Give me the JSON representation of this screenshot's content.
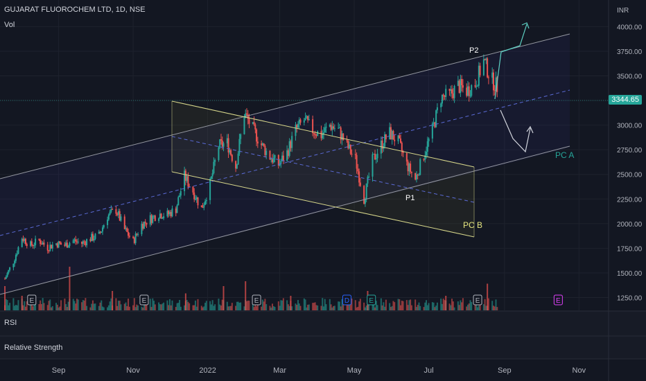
{
  "header": {
    "title": "GUJARAT FLUOROCHEM LTD, 1D, NSE",
    "indicator": "Vol"
  },
  "currency": "INR",
  "last_price": "3344.65",
  "panels": {
    "rsi": "RSI",
    "relative_strength": "Relative Strength"
  },
  "colors": {
    "up": "#26a69a",
    "down": "#ef5350",
    "bg": "#131722",
    "grid": "#1e222d",
    "text": "#b2b5be",
    "channel_a": "#9598a1",
    "channel_b": "#d9d98c"
  },
  "annotations": {
    "p1": "P1",
    "p2": "P2",
    "pc_a": "PC A",
    "pc_b": "PC B"
  },
  "event_markers": [
    {
      "label": "E",
      "x": "2021-08-10",
      "color": "#b2b5be"
    },
    {
      "label": "E",
      "x": "2021-11-10",
      "color": "#b2b5be"
    },
    {
      "label": "E",
      "x": "2022-02-10",
      "color": "#b2b5be"
    },
    {
      "label": "D",
      "x": "2022-04-25",
      "color": "#2962ff"
    },
    {
      "label": "E",
      "x": "2022-05-15",
      "color": "#26a69a"
    },
    {
      "label": "E",
      "x": "2022-08-10",
      "color": "#b2b5be"
    },
    {
      "label": "E",
      "x": "2022-10-15",
      "color": "#e040fb"
    }
  ],
  "chart_data": {
    "type": "candlestick",
    "title": "GUJARAT FLUOROCHEM LTD, 1D, NSE",
    "x_ticks": [
      {
        "label": "Sep",
        "x": "2021-09-01"
      },
      {
        "label": "Nov",
        "x": "2021-11-01"
      },
      {
        "label": "2022",
        "x": "2022-01-01"
      },
      {
        "label": "Mar",
        "x": "2022-03-01"
      },
      {
        "label": "May",
        "x": "2022-05-01"
      },
      {
        "label": "Jul",
        "x": "2022-07-01"
      },
      {
        "label": "Sep",
        "x": "2022-09-01"
      },
      {
        "label": "Nov",
        "x": "2022-11-01"
      }
    ],
    "y_ticks": [
      "1250.00",
      "1500.00",
      "1750.00",
      "2000.00",
      "2250.00",
      "2500.00",
      "2750.00",
      "3000.00",
      "3250.00",
      "3500.00",
      "3750.00",
      "4000.00"
    ],
    "ylim": [
      1120,
      4270
    ],
    "xlim": [
      "2021-07-15",
      "2022-11-15"
    ],
    "series": [
      {
        "points": [
          {
            "x": "2021-07-19",
            "close": 1440
          },
          {
            "x": "2021-07-26",
            "close": 1620
          },
          {
            "x": "2021-08-02",
            "close": 1860
          },
          {
            "x": "2021-08-09",
            "close": 1780
          },
          {
            "x": "2021-08-16",
            "close": 1830
          },
          {
            "x": "2021-08-23",
            "close": 1760
          },
          {
            "x": "2021-08-30",
            "close": 1800
          },
          {
            "x": "2021-09-06",
            "close": 1780
          },
          {
            "x": "2021-09-13",
            "close": 1830
          },
          {
            "x": "2021-09-20",
            "close": 1800
          },
          {
            "x": "2021-09-27",
            "close": 1850
          },
          {
            "x": "2021-10-04",
            "close": 1880
          },
          {
            "x": "2021-10-11",
            "close": 2080
          },
          {
            "x": "2021-10-18",
            "close": 2140
          },
          {
            "x": "2021-10-25",
            "close": 1940
          },
          {
            "x": "2021-11-01",
            "close": 1820
          },
          {
            "x": "2021-11-08",
            "close": 1990
          },
          {
            "x": "2021-11-15",
            "close": 2050
          },
          {
            "x": "2021-11-22",
            "close": 2100
          },
          {
            "x": "2021-11-29",
            "close": 2090
          },
          {
            "x": "2021-12-06",
            "close": 2150
          },
          {
            "x": "2021-12-13",
            "close": 2480
          },
          {
            "x": "2021-12-20",
            "close": 2330
          },
          {
            "x": "2021-12-27",
            "close": 2150
          },
          {
            "x": "2022-01-03",
            "close": 2400
          },
          {
            "x": "2022-01-10",
            "close": 2790
          },
          {
            "x": "2022-01-17",
            "close": 2820
          },
          {
            "x": "2022-01-24",
            "close": 2580
          },
          {
            "x": "2022-01-31",
            "close": 3120
          },
          {
            "x": "2022-02-07",
            "close": 2960
          },
          {
            "x": "2022-02-14",
            "close": 2800
          },
          {
            "x": "2022-02-21",
            "close": 2680
          },
          {
            "x": "2022-02-28",
            "close": 2600
          },
          {
            "x": "2022-03-07",
            "close": 2720
          },
          {
            "x": "2022-03-14",
            "close": 2950
          },
          {
            "x": "2022-03-21",
            "close": 3050
          },
          {
            "x": "2022-03-28",
            "close": 2950
          },
          {
            "x": "2022-04-04",
            "close": 2900
          },
          {
            "x": "2022-04-11",
            "close": 3000
          },
          {
            "x": "2022-04-18",
            "close": 2950
          },
          {
            "x": "2022-04-25",
            "close": 2790
          },
          {
            "x": "2022-05-02",
            "close": 2650
          },
          {
            "x": "2022-05-09",
            "close": 2250
          },
          {
            "x": "2022-05-16",
            "close": 2640
          },
          {
            "x": "2022-05-23",
            "close": 2800
          },
          {
            "x": "2022-05-30",
            "close": 2920
          },
          {
            "x": "2022-06-06",
            "close": 2830
          },
          {
            "x": "2022-06-13",
            "close": 2600
          },
          {
            "x": "2022-06-20",
            "close": 2450
          },
          {
            "x": "2022-06-27",
            "close": 2700
          },
          {
            "x": "2022-07-04",
            "close": 2950
          },
          {
            "x": "2022-07-11",
            "close": 3280
          },
          {
            "x": "2022-07-18",
            "close": 3300
          },
          {
            "x": "2022-07-25",
            "close": 3400
          },
          {
            "x": "2022-08-01",
            "close": 3350
          },
          {
            "x": "2022-08-08",
            "close": 3420
          },
          {
            "x": "2022-08-15",
            "close": 3650
          },
          {
            "x": "2022-08-22",
            "close": 3450
          },
          {
            "x": "2022-08-29",
            "close": 3344.65
          }
        ]
      }
    ],
    "volume": [
      {
        "x": "2021-07-19",
        "v": 0.5
      },
      {
        "x": "2021-08-02",
        "v": 0.3
      },
      {
        "x": "2021-09-10",
        "v": 0.9
      },
      {
        "x": "2021-10-15",
        "v": 0.4
      },
      {
        "x": "2021-12-14",
        "v": 0.35
      },
      {
        "x": "2022-01-14",
        "v": 0.5
      },
      {
        "x": "2022-02-01",
        "v": 0.6
      },
      {
        "x": "2022-03-10",
        "v": 0.3
      },
      {
        "x": "2022-05-12",
        "v": 0.4
      },
      {
        "x": "2022-07-15",
        "v": 0.3
      },
      {
        "x": "2022-08-18",
        "v": 0.55
      }
    ]
  }
}
